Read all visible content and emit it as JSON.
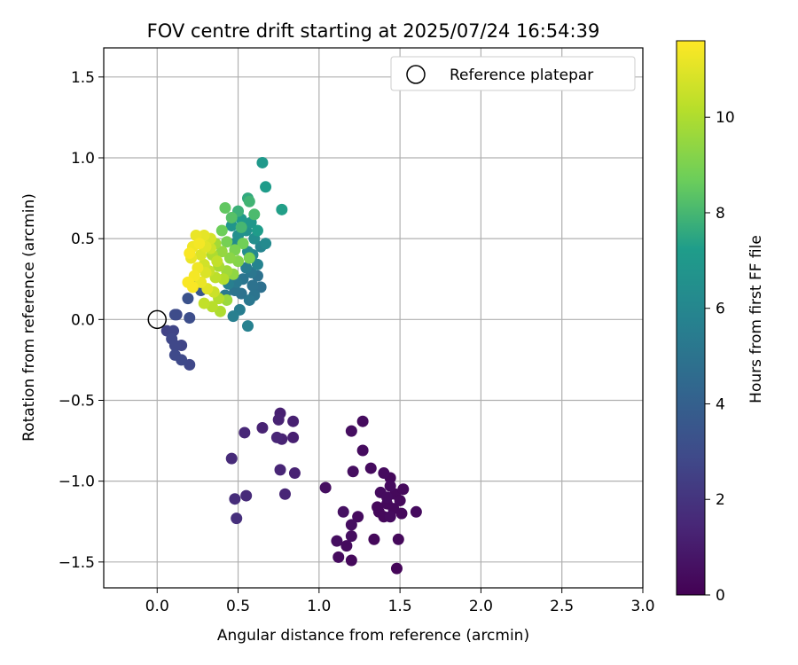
{
  "chart_data": {
    "type": "scatter",
    "title": "FOV centre drift starting at 2025/07/24 16:54:39",
    "xlabel": "Angular distance from reference (arcmin)",
    "ylabel": "Rotation from reference (arcmin)",
    "xlim": [
      -0.33,
      3.0
    ],
    "ylim": [
      -1.66,
      1.68
    ],
    "xticks": [
      0.0,
      0.5,
      1.0,
      1.5,
      2.0,
      2.5,
      3.0
    ],
    "xtick_labels": [
      "0.0",
      "0.5",
      "1.0",
      "1.5",
      "2.0",
      "2.5",
      "3.0"
    ],
    "yticks": [
      -1.5,
      -1.0,
      -0.5,
      0.0,
      0.5,
      1.0,
      1.5
    ],
    "ytick_labels": [
      "−1.5",
      "−1.0",
      "−0.5",
      "0.0",
      "0.5",
      "1.0",
      "1.5"
    ],
    "grid": true,
    "legend": {
      "placement": "top-right",
      "entries": [
        "Reference platepar"
      ]
    },
    "reference_point": {
      "name": "Reference platepar",
      "x": 0.0,
      "y": 0.0
    },
    "colorbar": {
      "label": "Hours from first FF file",
      "range": [
        0,
        11.6
      ],
      "ticks": [
        0,
        2,
        4,
        6,
        8,
        10
      ],
      "tick_labels": [
        "0",
        "2",
        "4",
        "6",
        "8",
        "10"
      ],
      "colormap": "viridis",
      "colormap_stops": [
        "#440154",
        "#482777",
        "#3f4a8a",
        "#31678e",
        "#26838f",
        "#1f9d8a",
        "#6cce5a",
        "#b6de2b",
        "#fee825"
      ]
    },
    "points": [
      {
        "x": 1.48,
        "y": -1.54,
        "c": 0.2
      },
      {
        "x": 1.2,
        "y": -1.49,
        "c": 0.3
      },
      {
        "x": 1.12,
        "y": -1.47,
        "c": 0.4
      },
      {
        "x": 1.11,
        "y": -1.37,
        "c": 0.5
      },
      {
        "x": 1.17,
        "y": -1.4,
        "c": 0.4
      },
      {
        "x": 1.2,
        "y": -1.34,
        "c": 0.5
      },
      {
        "x": 1.34,
        "y": -1.36,
        "c": 0.3
      },
      {
        "x": 1.49,
        "y": -1.36,
        "c": 0.3
      },
      {
        "x": 1.15,
        "y": -1.19,
        "c": 0.6
      },
      {
        "x": 1.2,
        "y": -1.27,
        "c": 0.5
      },
      {
        "x": 1.24,
        "y": -1.22,
        "c": 0.4
      },
      {
        "x": 1.37,
        "y": -1.19,
        "c": 0.3
      },
      {
        "x": 1.4,
        "y": -1.22,
        "c": 0.3
      },
      {
        "x": 1.44,
        "y": -1.22,
        "c": 0.4
      },
      {
        "x": 1.42,
        "y": -1.14,
        "c": 0.3
      },
      {
        "x": 1.46,
        "y": -1.17,
        "c": 0.3
      },
      {
        "x": 1.51,
        "y": -1.2,
        "c": 0.3
      },
      {
        "x": 1.6,
        "y": -1.19,
        "c": 0.4
      },
      {
        "x": 1.38,
        "y": -1.07,
        "c": 0.4
      },
      {
        "x": 1.42,
        "y": -1.1,
        "c": 0.4
      },
      {
        "x": 1.47,
        "y": -1.08,
        "c": 0.3
      },
      {
        "x": 1.52,
        "y": -1.05,
        "c": 0.3
      },
      {
        "x": 1.44,
        "y": -1.03,
        "c": 0.4
      },
      {
        "x": 1.4,
        "y": -0.95,
        "c": 0.4
      },
      {
        "x": 1.44,
        "y": -0.98,
        "c": 0.3
      },
      {
        "x": 1.32,
        "y": -0.92,
        "c": 0.4
      },
      {
        "x": 1.21,
        "y": -0.94,
        "c": 0.5
      },
      {
        "x": 1.04,
        "y": -1.04,
        "c": 0.5
      },
      {
        "x": 1.27,
        "y": -0.81,
        "c": 0.4
      },
      {
        "x": 1.2,
        "y": -0.69,
        "c": 0.5
      },
      {
        "x": 1.27,
        "y": -0.63,
        "c": 0.4
      },
      {
        "x": 1.5,
        "y": -1.12,
        "c": 0.3
      },
      {
        "x": 1.36,
        "y": -1.16,
        "c": 0.3
      },
      {
        "x": 0.76,
        "y": -0.58,
        "c": 1.2
      },
      {
        "x": 0.75,
        "y": -0.62,
        "c": 1.3
      },
      {
        "x": 0.84,
        "y": -0.63,
        "c": 1.2
      },
      {
        "x": 0.65,
        "y": -0.67,
        "c": 1.3
      },
      {
        "x": 0.74,
        "y": -0.73,
        "c": 1.4
      },
      {
        "x": 0.77,
        "y": -0.74,
        "c": 1.3
      },
      {
        "x": 0.84,
        "y": -0.73,
        "c": 1.2
      },
      {
        "x": 0.54,
        "y": -0.7,
        "c": 1.5
      },
      {
        "x": 0.46,
        "y": -0.86,
        "c": 1.6
      },
      {
        "x": 0.76,
        "y": -0.93,
        "c": 1.4
      },
      {
        "x": 0.85,
        "y": -0.95,
        "c": 1.3
      },
      {
        "x": 0.79,
        "y": -1.08,
        "c": 1.4
      },
      {
        "x": 0.55,
        "y": -1.09,
        "c": 1.6
      },
      {
        "x": 0.48,
        "y": -1.11,
        "c": 1.7
      },
      {
        "x": 0.49,
        "y": -1.23,
        "c": 1.8
      },
      {
        "x": 0.06,
        "y": -0.07,
        "c": 2.6
      },
      {
        "x": 0.1,
        "y": -0.07,
        "c": 2.7
      },
      {
        "x": 0.09,
        "y": -0.12,
        "c": 2.8
      },
      {
        "x": 0.11,
        "y": -0.16,
        "c": 2.8
      },
      {
        "x": 0.15,
        "y": -0.16,
        "c": 2.7
      },
      {
        "x": 0.11,
        "y": -0.22,
        "c": 2.9
      },
      {
        "x": 0.15,
        "y": -0.25,
        "c": 2.9
      },
      {
        "x": 0.2,
        "y": -0.28,
        "c": 2.8
      },
      {
        "x": 0.12,
        "y": 0.03,
        "c": 2.9
      },
      {
        "x": 0.11,
        "y": 0.03,
        "c": 3.0
      },
      {
        "x": 0.2,
        "y": 0.01,
        "c": 3.1
      },
      {
        "x": 0.19,
        "y": 0.13,
        "c": 3.3
      },
      {
        "x": 0.27,
        "y": 0.18,
        "c": 3.5
      },
      {
        "x": 0.25,
        "y": 0.21,
        "c": 3.6
      },
      {
        "x": 0.47,
        "y": 0.02,
        "c": 5.6
      },
      {
        "x": 0.51,
        "y": 0.06,
        "c": 5.5
      },
      {
        "x": 0.56,
        "y": -0.04,
        "c": 5.7
      },
      {
        "x": 0.42,
        "y": 0.15,
        "c": 5.3
      },
      {
        "x": 0.48,
        "y": 0.18,
        "c": 5.0
      },
      {
        "x": 0.52,
        "y": 0.16,
        "c": 4.9
      },
      {
        "x": 0.57,
        "y": 0.12,
        "c": 5.2
      },
      {
        "x": 0.6,
        "y": 0.15,
        "c": 5.0
      },
      {
        "x": 0.64,
        "y": 0.2,
        "c": 4.8
      },
      {
        "x": 0.59,
        "y": 0.21,
        "c": 4.9
      },
      {
        "x": 0.53,
        "y": 0.25,
        "c": 5.1
      },
      {
        "x": 0.49,
        "y": 0.23,
        "c": 5.3
      },
      {
        "x": 0.44,
        "y": 0.22,
        "c": 5.6
      },
      {
        "x": 0.62,
        "y": 0.27,
        "c": 4.9
      },
      {
        "x": 0.58,
        "y": 0.29,
        "c": 5.2
      },
      {
        "x": 0.55,
        "y": 0.32,
        "c": 5.5
      },
      {
        "x": 0.62,
        "y": 0.34,
        "c": 5.8
      },
      {
        "x": 0.64,
        "y": 0.45,
        "c": 5.9
      },
      {
        "x": 0.59,
        "y": 0.4,
        "c": 6.1
      },
      {
        "x": 0.56,
        "y": 0.42,
        "c": 6.3
      },
      {
        "x": 0.6,
        "y": 0.5,
        "c": 6.4
      },
      {
        "x": 0.55,
        "y": 0.55,
        "c": 6.6
      },
      {
        "x": 0.5,
        "y": 0.52,
        "c": 6.5
      },
      {
        "x": 0.48,
        "y": 0.47,
        "c": 6.3
      },
      {
        "x": 0.46,
        "y": 0.58,
        "c": 6.8
      },
      {
        "x": 0.52,
        "y": 0.62,
        "c": 7.0
      },
      {
        "x": 0.58,
        "y": 0.6,
        "c": 6.9
      },
      {
        "x": 0.67,
        "y": 0.47,
        "c": 6.2
      },
      {
        "x": 0.62,
        "y": 0.55,
        "c": 7.2
      },
      {
        "x": 0.65,
        "y": 0.97,
        "c": 7.0
      },
      {
        "x": 0.67,
        "y": 0.82,
        "c": 7.2
      },
      {
        "x": 0.77,
        "y": 0.68,
        "c": 7.3
      },
      {
        "x": 0.56,
        "y": 0.75,
        "c": 7.6
      },
      {
        "x": 0.5,
        "y": 0.67,
        "c": 7.8
      },
      {
        "x": 0.57,
        "y": 0.73,
        "c": 7.9
      },
      {
        "x": 0.6,
        "y": 0.65,
        "c": 8.1
      },
      {
        "x": 0.42,
        "y": 0.69,
        "c": 8.5
      },
      {
        "x": 0.46,
        "y": 0.63,
        "c": 8.3
      },
      {
        "x": 0.52,
        "y": 0.57,
        "c": 8.0
      },
      {
        "x": 0.4,
        "y": 0.55,
        "c": 8.7
      },
      {
        "x": 0.43,
        "y": 0.48,
        "c": 8.9
      },
      {
        "x": 0.48,
        "y": 0.43,
        "c": 9.0
      },
      {
        "x": 0.53,
        "y": 0.47,
        "c": 8.8
      },
      {
        "x": 0.57,
        "y": 0.38,
        "c": 9.0
      },
      {
        "x": 0.5,
        "y": 0.36,
        "c": 9.2
      },
      {
        "x": 0.45,
        "y": 0.38,
        "c": 9.3
      },
      {
        "x": 0.4,
        "y": 0.42,
        "c": 9.5
      },
      {
        "x": 0.36,
        "y": 0.47,
        "c": 9.8
      },
      {
        "x": 0.34,
        "y": 0.4,
        "c": 10.0
      },
      {
        "x": 0.38,
        "y": 0.33,
        "c": 9.9
      },
      {
        "x": 0.43,
        "y": 0.3,
        "c": 9.7
      },
      {
        "x": 0.47,
        "y": 0.28,
        "c": 9.4
      },
      {
        "x": 0.41,
        "y": 0.25,
        "c": 10.1
      },
      {
        "x": 0.36,
        "y": 0.26,
        "c": 10.3
      },
      {
        "x": 0.32,
        "y": 0.3,
        "c": 10.5
      },
      {
        "x": 0.29,
        "y": 0.34,
        "c": 10.7
      },
      {
        "x": 0.27,
        "y": 0.4,
        "c": 10.9
      },
      {
        "x": 0.3,
        "y": 0.45,
        "c": 11.0
      },
      {
        "x": 0.33,
        "y": 0.5,
        "c": 10.8
      },
      {
        "x": 0.29,
        "y": 0.52,
        "c": 11.1
      },
      {
        "x": 0.24,
        "y": 0.52,
        "c": 11.2
      },
      {
        "x": 0.22,
        "y": 0.45,
        "c": 11.3
      },
      {
        "x": 0.21,
        "y": 0.38,
        "c": 11.2
      },
      {
        "x": 0.25,
        "y": 0.32,
        "c": 11.3
      },
      {
        "x": 0.23,
        "y": 0.27,
        "c": 11.4
      },
      {
        "x": 0.19,
        "y": 0.23,
        "c": 11.5
      },
      {
        "x": 0.22,
        "y": 0.2,
        "c": 11.5
      },
      {
        "x": 0.27,
        "y": 0.23,
        "c": 11.2
      },
      {
        "x": 0.31,
        "y": 0.19,
        "c": 11.0
      },
      {
        "x": 0.35,
        "y": 0.17,
        "c": 10.6
      },
      {
        "x": 0.29,
        "y": 0.1,
        "c": 10.4
      },
      {
        "x": 0.34,
        "y": 0.08,
        "c": 10.2
      },
      {
        "x": 0.39,
        "y": 0.05,
        "c": 10.0
      },
      {
        "x": 0.43,
        "y": 0.12,
        "c": 9.6
      },
      {
        "x": 0.38,
        "y": 0.13,
        "c": 10.1
      },
      {
        "x": 0.3,
        "y": 0.29,
        "c": 10.9
      },
      {
        "x": 0.37,
        "y": 0.36,
        "c": 10.4
      },
      {
        "x": 0.33,
        "y": 0.44,
        "c": 10.6
      },
      {
        "x": 0.26,
        "y": 0.47,
        "c": 11.4
      },
      {
        "x": 0.2,
        "y": 0.41,
        "c": 11.5
      }
    ]
  }
}
